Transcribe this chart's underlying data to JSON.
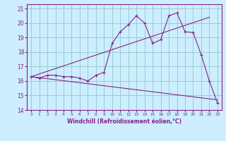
{
  "xlabel": "Windchill (Refroidissement éolien,°C)",
  "bg_color": "#cceeff",
  "grid_color": "#99cccc",
  "line_color": "#882288",
  "xlim": [
    -0.5,
    23.5
  ],
  "ylim": [
    14,
    21.3
  ],
  "xticks": [
    0,
    1,
    2,
    3,
    4,
    5,
    6,
    7,
    8,
    9,
    10,
    11,
    12,
    13,
    14,
    15,
    16,
    17,
    18,
    19,
    20,
    21,
    22,
    23
  ],
  "yticks": [
    14,
    15,
    16,
    17,
    18,
    19,
    20,
    21
  ],
  "line1_x": [
    0,
    1,
    2,
    3,
    4,
    5,
    6,
    7,
    8,
    9,
    10,
    11,
    12,
    13,
    14,
    15,
    16,
    17,
    18,
    19,
    20,
    21,
    22,
    23
  ],
  "line1_y": [
    16.3,
    16.2,
    16.4,
    16.4,
    16.3,
    16.3,
    16.2,
    16.0,
    16.4,
    16.6,
    18.6,
    19.4,
    19.9,
    20.5,
    20.0,
    18.6,
    18.85,
    20.5,
    20.7,
    19.4,
    19.35,
    17.8,
    16.0,
    14.5
  ],
  "line2_x": [
    0,
    23
  ],
  "line2_y": [
    16.3,
    14.7
  ],
  "line3_x": [
    0,
    22
  ],
  "line3_y": [
    16.3,
    20.4
  ],
  "xlabel_fontsize": 5.5,
  "xtick_fontsize": 4.2,
  "ytick_fontsize": 5.5
}
